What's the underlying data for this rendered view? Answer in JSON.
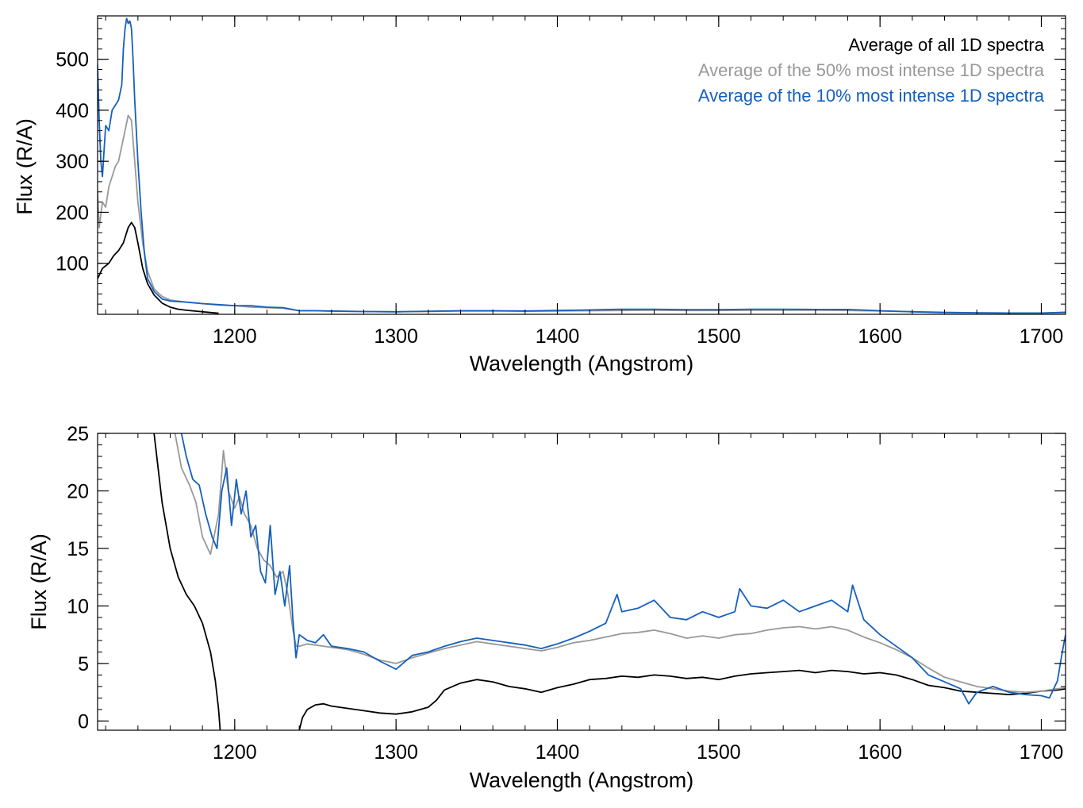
{
  "chart_data": [
    {
      "type": "line",
      "xlabel": "Wavelength (Angstrom)",
      "ylabel": "Flux (R/A)",
      "xlim": [
        1115,
        1715
      ],
      "ylim": [
        0,
        585
      ],
      "xticks": [
        1200,
        1300,
        1400,
        1500,
        1600,
        1700
      ],
      "yticks": [
        100,
        200,
        300,
        400,
        500
      ],
      "legend": {
        "placement": "top-right",
        "entries": [
          {
            "name": "Average of all 1D spectra",
            "color": "#000000"
          },
          {
            "name": "Average of the 50% most intense 1D spectra",
            "color": "#999999"
          },
          {
            "name": "Average of the 10% most intense 1D spectra",
            "color": "#1560bd"
          }
        ]
      },
      "series": [
        {
          "name": "Average of all 1D spectra",
          "color": "#000000",
          "x": [
            1115,
            1118,
            1122,
            1125,
            1128,
            1131,
            1134,
            1136,
            1138,
            1140,
            1143,
            1146,
            1150,
            1155,
            1160,
            1165,
            1170,
            1180,
            1190
          ],
          "y": [
            70,
            90,
            100,
            115,
            125,
            140,
            170,
            180,
            170,
            140,
            90,
            60,
            38,
            22,
            14,
            10,
            8,
            5,
            2
          ]
        },
        {
          "name": "Average of the 50% most intense 1D spectra",
          "color": "#999999",
          "x": [
            1115,
            1116,
            1118,
            1120,
            1122,
            1124,
            1126,
            1128,
            1130,
            1132,
            1134,
            1136,
            1138,
            1140,
            1143,
            1146,
            1150,
            1155,
            1160,
            1170,
            1180,
            1190,
            1200,
            1210,
            1220,
            1230,
            1240,
            1250,
            1260,
            1280,
            1300,
            1320,
            1340,
            1360,
            1380,
            1400,
            1420,
            1440,
            1460,
            1480,
            1500,
            1520,
            1540,
            1560,
            1580,
            1600,
            1620,
            1640,
            1660,
            1680,
            1700,
            1715
          ],
          "y": [
            240,
            170,
            220,
            210,
            250,
            270,
            290,
            300,
            330,
            360,
            390,
            380,
            300,
            220,
            140,
            85,
            50,
            35,
            28,
            24,
            21,
            18,
            17,
            14,
            13,
            12,
            7,
            7,
            6,
            5.5,
            5,
            5.5,
            6.5,
            6.5,
            6,
            6.5,
            7,
            7.5,
            8,
            7.5,
            7.5,
            8,
            8,
            8,
            7.5,
            6.5,
            5,
            4,
            3,
            2.5,
            2.5,
            3
          ]
        },
        {
          "name": "Average of the 10% most intense 1D spectra",
          "color": "#1560bd",
          "x": [
            1115,
            1116,
            1117,
            1118,
            1119,
            1120,
            1122,
            1124,
            1126,
            1128,
            1130,
            1131,
            1132,
            1133,
            1134,
            1135,
            1136,
            1137,
            1138,
            1140,
            1142,
            1144,
            1146,
            1150,
            1155,
            1160,
            1170,
            1180,
            1190,
            1200,
            1210,
            1220,
            1230,
            1240,
            1250,
            1260,
            1280,
            1300,
            1320,
            1340,
            1360,
            1380,
            1400,
            1420,
            1440,
            1460,
            1480,
            1500,
            1520,
            1540,
            1560,
            1580,
            1600,
            1620,
            1640,
            1660,
            1680,
            1700,
            1715
          ],
          "y": [
            490,
            380,
            300,
            270,
            320,
            370,
            360,
            400,
            410,
            420,
            450,
            520,
            560,
            580,
            570,
            575,
            560,
            500,
            420,
            300,
            200,
            120,
            70,
            45,
            30,
            26,
            24,
            21,
            19,
            17,
            17,
            14,
            13,
            7,
            7,
            6.5,
            5.5,
            5,
            6,
            7,
            7,
            6.5,
            7.5,
            8.5,
            10,
            10,
            9,
            9,
            10,
            10,
            9.5,
            9.5,
            7,
            5,
            3.5,
            3,
            2.5,
            2.5,
            4
          ]
        }
      ]
    },
    {
      "type": "line",
      "xlabel": "Wavelength (Angstrom)",
      "ylabel": "Flux (R/A)",
      "xlim": [
        1115,
        1715
      ],
      "ylim": [
        -0.8,
        25
      ],
      "xticks": [
        1200,
        1300,
        1400,
        1500,
        1600,
        1700
      ],
      "yticks": [
        0,
        5,
        10,
        15,
        20,
        25
      ],
      "series": [
        {
          "name": "Average of all 1D spectra",
          "color": "#000000",
          "x": [
            1150,
            1155,
            1160,
            1165,
            1170,
            1175,
            1180,
            1185,
            1188,
            1190,
            1191
          ],
          "y": [
            25,
            19,
            15,
            12.5,
            11,
            10,
            8.5,
            6,
            3.5,
            1,
            -0.8
          ]
        },
        {
          "name": "Average of all 1D spectra",
          "color": "#000000",
          "x": [
            1240,
            1242,
            1245,
            1250,
            1255,
            1260,
            1270,
            1280,
            1290,
            1300,
            1310,
            1320,
            1325,
            1330,
            1340,
            1350,
            1360,
            1370,
            1380,
            1390,
            1400,
            1410,
            1420,
            1430,
            1440,
            1450,
            1460,
            1470,
            1480,
            1490,
            1500,
            1510,
            1520,
            1530,
            1540,
            1550,
            1560,
            1570,
            1580,
            1590,
            1600,
            1610,
            1620,
            1630,
            1640,
            1650,
            1660,
            1670,
            1680,
            1690,
            1700,
            1710,
            1715
          ],
          "y": [
            -0.8,
            0.3,
            1.0,
            1.4,
            1.5,
            1.3,
            1.1,
            0.9,
            0.7,
            0.6,
            0.8,
            1.2,
            1.8,
            2.7,
            3.3,
            3.6,
            3.4,
            3.0,
            2.8,
            2.5,
            2.9,
            3.2,
            3.6,
            3.7,
            3.9,
            3.8,
            4.0,
            3.9,
            3.7,
            3.8,
            3.6,
            3.9,
            4.1,
            4.2,
            4.3,
            4.4,
            4.2,
            4.4,
            4.3,
            4.1,
            4.2,
            4.0,
            3.6,
            3.1,
            2.9,
            2.6,
            2.5,
            2.4,
            2.3,
            2.4,
            2.6,
            2.7,
            2.8
          ]
        },
        {
          "name": "Average of the 50% most intense 1D spectra",
          "color": "#999999",
          "x": [
            1163,
            1167,
            1172,
            1176,
            1180,
            1185,
            1190,
            1193,
            1196,
            1200,
            1203,
            1206,
            1210,
            1214,
            1218,
            1222,
            1226,
            1230,
            1233,
            1236,
            1238,
            1240,
            1245,
            1250,
            1260,
            1270,
            1280,
            1290,
            1300,
            1310,
            1320,
            1330,
            1340,
            1350,
            1360,
            1370,
            1380,
            1390,
            1400,
            1410,
            1420,
            1430,
            1440,
            1450,
            1460,
            1470,
            1480,
            1490,
            1500,
            1510,
            1520,
            1530,
            1540,
            1550,
            1560,
            1570,
            1580,
            1590,
            1600,
            1610,
            1620,
            1630,
            1640,
            1650,
            1660,
            1670,
            1680,
            1690,
            1700,
            1710,
            1715
          ],
          "y": [
            25,
            22,
            20.5,
            19,
            16,
            14.5,
            18,
            23.5,
            20,
            18.5,
            19.5,
            18,
            17,
            15,
            14,
            13.5,
            12.5,
            13,
            11,
            8,
            6.5,
            6.5,
            6.7,
            6.6,
            6.4,
            6.2,
            5.8,
            5.3,
            5.0,
            5.5,
            5.9,
            6.3,
            6.6,
            6.9,
            6.7,
            6.5,
            6.3,
            6.1,
            6.4,
            6.8,
            7.0,
            7.3,
            7.6,
            7.7,
            7.9,
            7.6,
            7.2,
            7.4,
            7.2,
            7.5,
            7.6,
            7.9,
            8.1,
            8.2,
            8.0,
            8.2,
            7.9,
            7.3,
            6.8,
            6.2,
            5.5,
            4.6,
            3.8,
            3.4,
            3.0,
            2.8,
            2.6,
            2.5,
            2.6,
            2.8,
            2.9
          ]
        },
        {
          "name": "Average of the 10% most intense 1D spectra",
          "color": "#1560bd",
          "x": [
            1167,
            1170,
            1174,
            1178,
            1182,
            1186,
            1189,
            1192,
            1195,
            1198,
            1201,
            1204,
            1207,
            1210,
            1213,
            1216,
            1219,
            1222,
            1225,
            1228,
            1231,
            1234,
            1236,
            1238,
            1240,
            1245,
            1250,
            1255,
            1260,
            1270,
            1280,
            1290,
            1300,
            1310,
            1320,
            1330,
            1340,
            1350,
            1360,
            1370,
            1380,
            1390,
            1400,
            1410,
            1420,
            1430,
            1437,
            1440,
            1450,
            1460,
            1470,
            1480,
            1490,
            1500,
            1510,
            1513,
            1520,
            1530,
            1540,
            1550,
            1560,
            1570,
            1580,
            1583,
            1590,
            1600,
            1610,
            1620,
            1630,
            1640,
            1650,
            1655,
            1660,
            1670,
            1680,
            1690,
            1700,
            1705,
            1710,
            1713,
            1715
          ],
          "y": [
            25,
            23,
            21,
            20.5,
            18,
            16,
            15,
            20,
            22,
            17,
            21,
            18,
            20,
            16,
            17,
            13,
            12,
            17,
            11,
            13,
            10,
            13.5,
            9,
            5.5,
            7.5,
            7,
            6.8,
            7.5,
            6.5,
            6.3,
            6.0,
            5.2,
            4.5,
            5.7,
            6.0,
            6.5,
            6.9,
            7.2,
            7.0,
            6.8,
            6.6,
            6.3,
            6.7,
            7.2,
            7.8,
            8.5,
            11,
            9.5,
            9.8,
            10.5,
            9.0,
            8.8,
            9.5,
            9.0,
            9.5,
            11.5,
            10.0,
            9.8,
            10.5,
            9.5,
            10.0,
            10.5,
            9.5,
            11.8,
            8.8,
            7.5,
            6.5,
            5.5,
            4.0,
            3.4,
            2.8,
            1.5,
            2.5,
            3.0,
            2.5,
            2.3,
            2.2,
            2.0,
            3.5,
            6.0,
            7.5
          ]
        }
      ]
    }
  ]
}
